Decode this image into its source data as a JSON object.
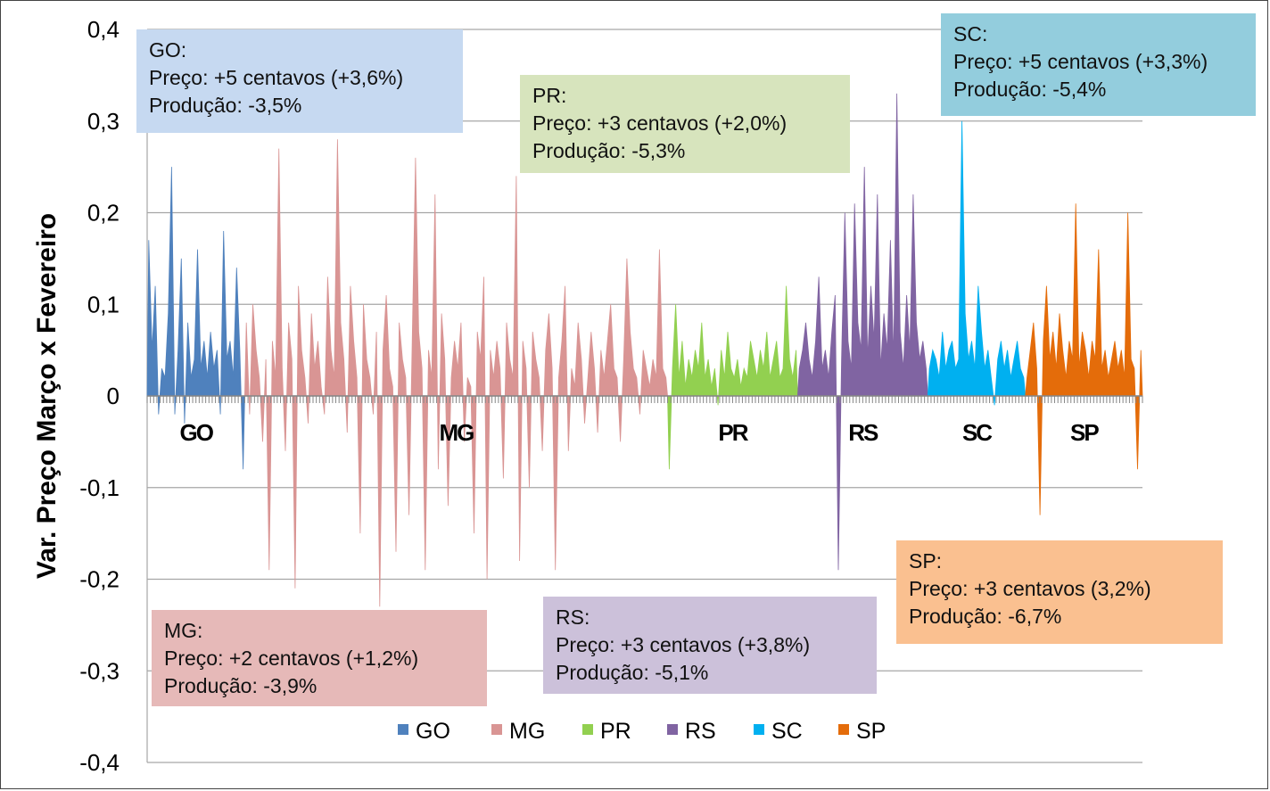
{
  "chart_data": {
    "type": "area",
    "ylabel": "Var. Preço Março x Fevereiro",
    "ylim": [
      -0.4,
      0.4
    ],
    "yticks": [
      "0,4",
      "0,3",
      "0,2",
      "0,1",
      "0",
      "-0,1",
      "-0,2",
      "-0,3",
      "-0,4"
    ],
    "ytick_values": [
      0.4,
      0.3,
      0.2,
      0.1,
      0,
      -0.1,
      -0.2,
      -0.3,
      -0.4
    ],
    "grid": true,
    "legend_position": "bottom",
    "series": [
      {
        "name": "GO",
        "color": "#4f81bd",
        "count": 30,
        "values": [
          0.17,
          0.05,
          0.12,
          -0.02,
          0.03,
          0.02,
          0.09,
          0.25,
          -0.02,
          0.05,
          0.15,
          -0.03,
          0.08,
          0.02,
          0.04,
          0.16,
          0.03,
          0.06,
          0.02,
          0.07,
          0.03,
          0.05,
          -0.02,
          0.18,
          0.04,
          0.06,
          0.02,
          0.14,
          0.05,
          -0.08
        ]
      },
      {
        "name": "MG",
        "color": "#d99594",
        "count": 130,
        "values": [
          0.08,
          -0.02,
          0.1,
          0.05,
          0.02,
          -0.05,
          0.04,
          -0.19,
          0.06,
          0.02,
          0.27,
          0.03,
          -0.06,
          0.08,
          0.04,
          -0.21,
          0.12,
          0.05,
          0.02,
          -0.03,
          0.09,
          0.03,
          0.06,
          0.01,
          -0.02,
          0.13,
          0.05,
          0.02,
          0.28,
          0.08,
          0.04,
          -0.04,
          0.12,
          0.06,
          0.02,
          -0.15,
          0.1,
          0.04,
          0.02,
          -0.02,
          0.07,
          -0.23,
          0.05,
          0.11,
          0.03,
          0.01,
          -0.17,
          0.08,
          0.04,
          0.02,
          -0.13,
          0.06,
          0.26,
          0.07,
          0.03,
          -0.19,
          0.05,
          0.02,
          0.22,
          -0.08,
          0.09,
          0.04,
          -0.12,
          0.02,
          0.06,
          0.03,
          0.08,
          -0.05,
          0.02,
          0.01,
          -0.15,
          0.07,
          0.04,
          0.13,
          -0.2,
          0.05,
          0.02,
          0.06,
          0.03,
          -0.09,
          0.08,
          0.04,
          0.02,
          0.24,
          -0.18,
          0.06,
          0.03,
          -0.1,
          0.07,
          0.04,
          0.02,
          -0.06,
          0.05,
          0.09,
          0.03,
          -0.19,
          0.02,
          0.06,
          0.12,
          -0.06,
          0.03,
          0.01,
          0.08,
          0.04,
          -0.03,
          0.02,
          0.07,
          0.03,
          -0.04,
          0.05,
          0.02,
          0.06,
          0.1,
          0.03,
          0.02,
          -0.05,
          0.04,
          0.15,
          0.07,
          0.03,
          0.02,
          -0.02,
          0.05,
          0.03,
          0.01,
          0.04,
          0.02,
          0.16,
          0.03,
          0.02
        ]
      },
      {
        "name": "PR",
        "color": "#92d050",
        "count": 40,
        "values": [
          -0.08,
          0.03,
          0.1,
          0.02,
          0.06,
          0.01,
          0.04,
          0.02,
          0.05,
          0.03,
          0.08,
          0.02,
          0.04,
          0.01,
          0.03,
          -0.01,
          0.05,
          0.02,
          0.07,
          0.03,
          0.02,
          0.04,
          0.01,
          0.03,
          0.02,
          0.06,
          0.04,
          0.02,
          0.05,
          0.03,
          0.07,
          0.02,
          0.04,
          0.06,
          0.02,
          0.03,
          0.12,
          0.04,
          0.02,
          0.05
        ]
      },
      {
        "name": "RS",
        "color": "#8064a2",
        "count": 40,
        "values": [
          0.03,
          0.05,
          0.08,
          0.04,
          0.02,
          0.06,
          0.13,
          0.03,
          0.05,
          0.02,
          0.07,
          0.11,
          -0.19,
          0.04,
          0.2,
          0.06,
          0.03,
          0.21,
          0.08,
          0.05,
          0.25,
          0.04,
          0.12,
          0.06,
          0.22,
          0.03,
          0.09,
          0.05,
          0.17,
          0.04,
          0.33,
          0.07,
          0.03,
          0.11,
          0.05,
          0.22,
          0.08,
          0.04,
          0.06,
          0.03
        ]
      },
      {
        "name": "SC",
        "color": "#00b0f0",
        "count": 30,
        "values": [
          0.03,
          0.05,
          0.04,
          0.02,
          0.07,
          0.03,
          0.05,
          0.06,
          0.03,
          0.04,
          0.3,
          0.09,
          0.04,
          0.06,
          0.03,
          0.12,
          0.07,
          0.03,
          0.05,
          0.02,
          -0.01,
          0.04,
          0.06,
          0.03,
          0.05,
          0.02,
          0.04,
          0.06,
          0.03,
          0.02
        ]
      },
      {
        "name": "SP",
        "color": "#e46c0a",
        "count": 36,
        "values": [
          0.02,
          0.05,
          0.08,
          0.03,
          -0.13,
          0.06,
          0.12,
          0.04,
          0.07,
          0.03,
          0.09,
          0.05,
          0.02,
          0.06,
          0.04,
          0.21,
          0.03,
          0.07,
          0.05,
          0.02,
          0.06,
          0.04,
          0.16,
          0.03,
          0.05,
          0.02,
          0.04,
          0.06,
          0.03,
          0.05,
          0.02,
          0.2,
          0.04,
          0.03,
          -0.08,
          0.05
        ]
      }
    ],
    "category_labels": [
      "GO",
      "MG",
      "PR",
      "RS",
      "SC",
      "SP"
    ]
  },
  "annotations": [
    {
      "id": "go",
      "color": "#c6d9f1",
      "lines": [
        "GO:",
        "Preço: +5 centavos (+3,6%)",
        "Produção: -3,5%"
      ]
    },
    {
      "id": "pr",
      "color": "#d7e4bd",
      "lines": [
        "PR:",
        "Preço: +3 centavos (+2,0%)",
        "Produção: -5,3%"
      ]
    },
    {
      "id": "sc",
      "color": "#93cddd",
      "lines": [
        "SC:",
        "Preço: +5 centavos (+3,3%)",
        "Produção: -5,4%"
      ]
    },
    {
      "id": "mg",
      "color": "#e6b9b8",
      "lines": [
        "MG:",
        "Preço: +2 centavos (+1,2%)",
        "Produção: -3,9%"
      ]
    },
    {
      "id": "rs",
      "color": "#ccc1da",
      "lines": [
        "RS:",
        "Preço: +3 centavos (+3,8%)",
        "Produção: -5,1%"
      ]
    },
    {
      "id": "sp",
      "color": "#fac090",
      "lines": [
        "SP:",
        "Preço: +3 centavos (3,2%)",
        "Produção: -6,7%"
      ]
    }
  ]
}
